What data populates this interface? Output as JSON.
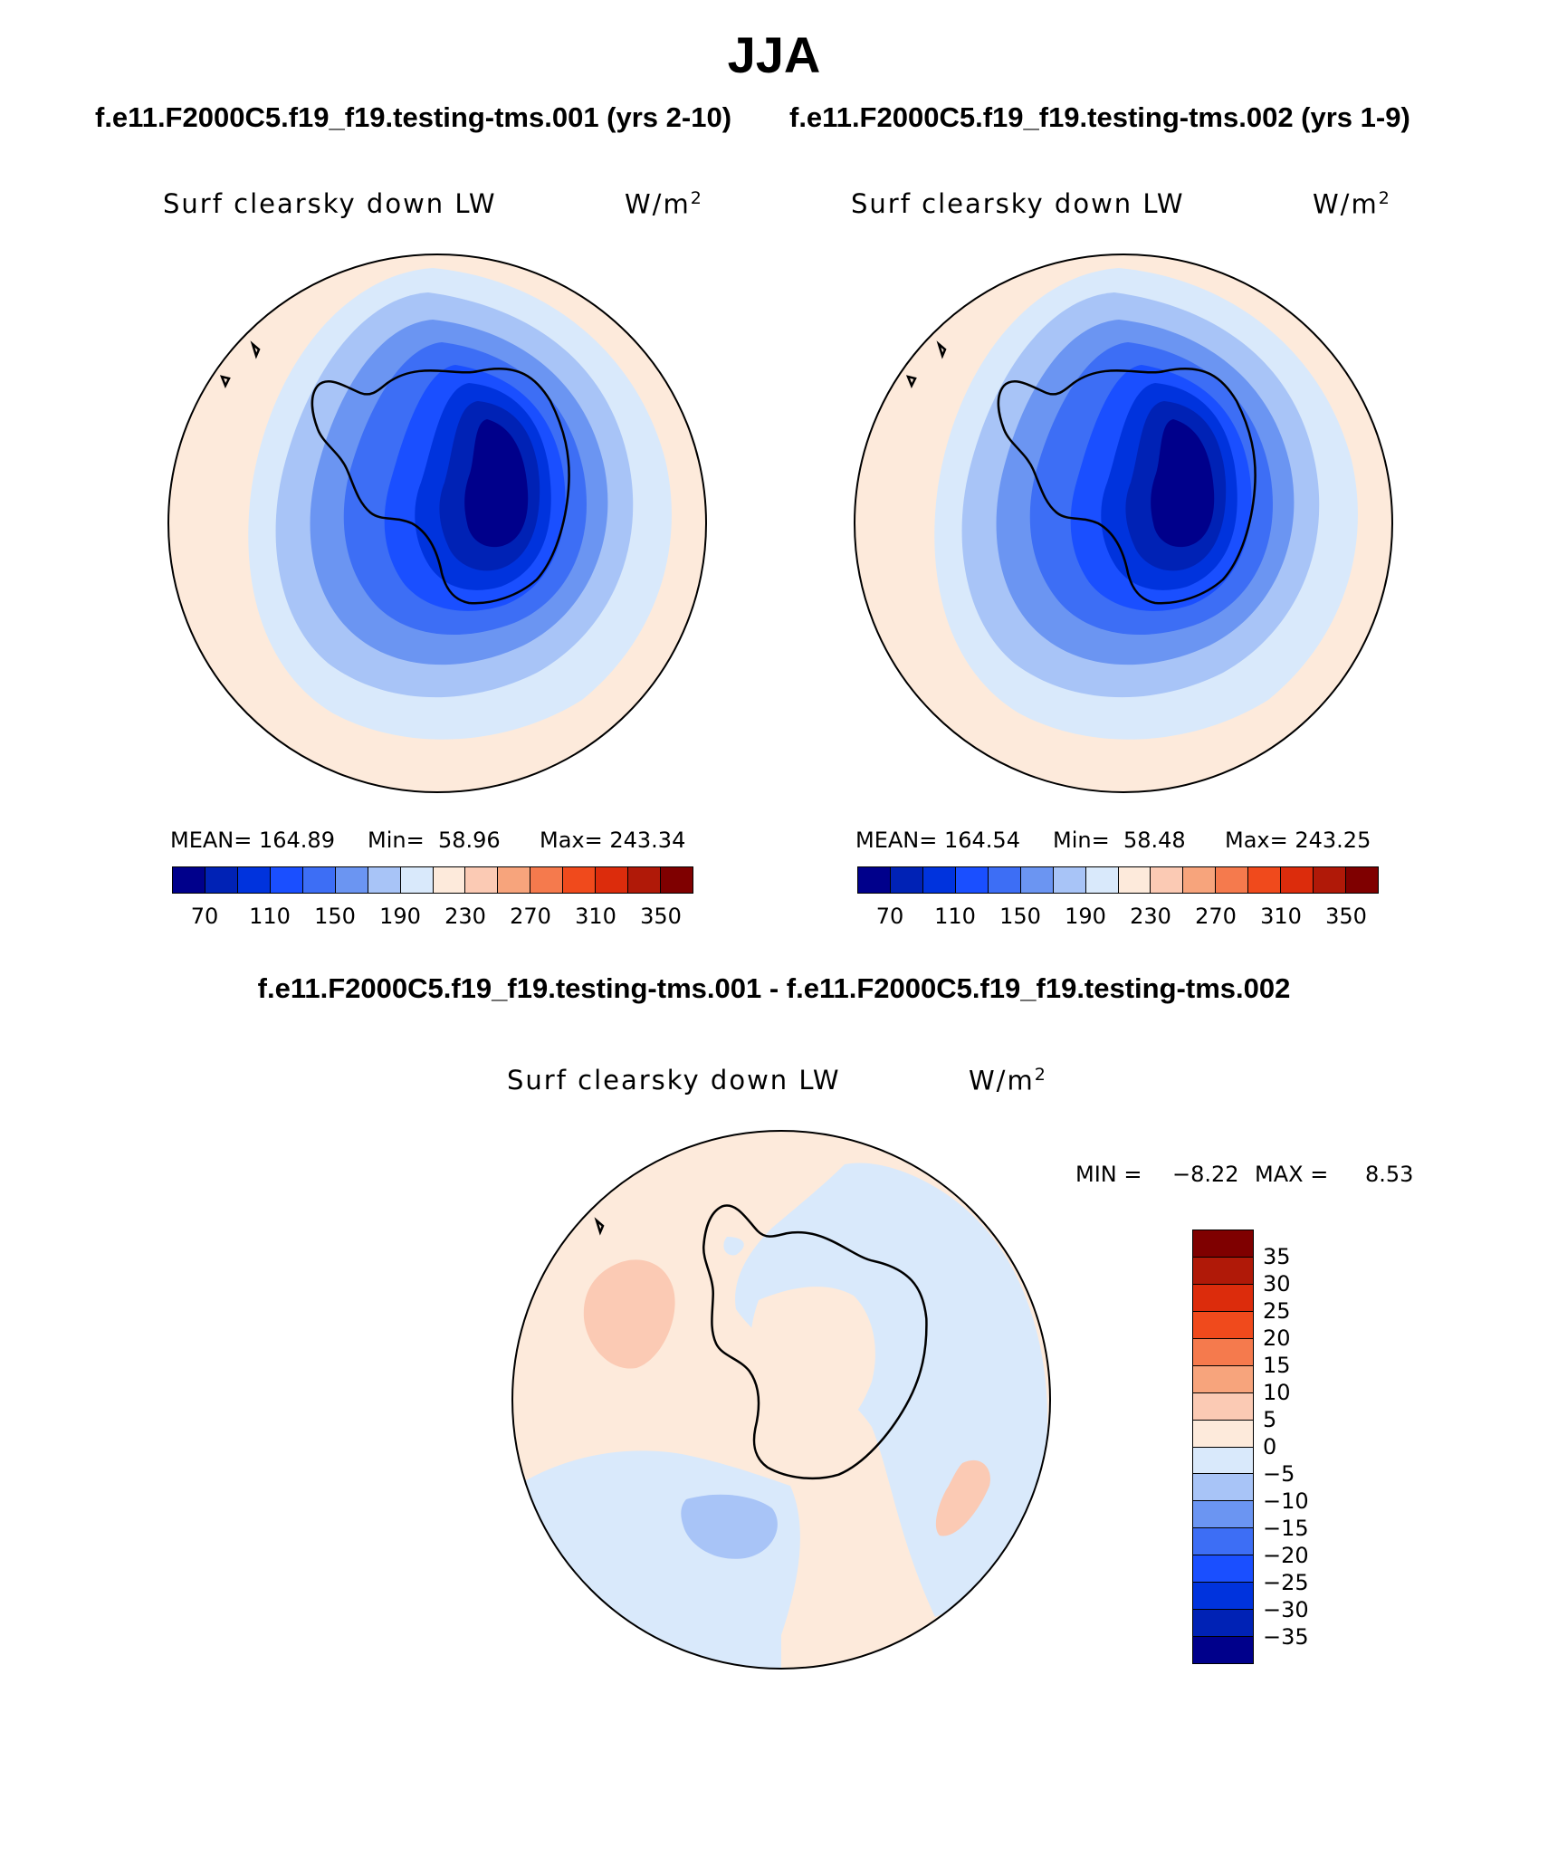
{
  "season": "JJA",
  "variable": "Surf clearsky down LW",
  "units_base": "W/m",
  "units_exp": "2",
  "panels": [
    {
      "case": "f.e11.F2000C5.f19_f19.testing-tms.001 (yrs 2-10)",
      "stats": {
        "mean": "MEAN= 164.89",
        "min": "Min=  58.96",
        "max": "Max= 243.34"
      }
    },
    {
      "case": "f.e11.F2000C5.f19_f19.testing-tms.002 (yrs 1-9)",
      "stats": {
        "mean": "MEAN= 164.54",
        "min": "Min=  58.48",
        "max": "Max= 243.25"
      }
    }
  ],
  "colorbar": {
    "colors": [
      "#00008b",
      "#0022b5",
      "#0033dd",
      "#1a4fff",
      "#3d6ef5",
      "#6b95f2",
      "#a8c4f7",
      "#d9e9fb",
      "#fdeadb",
      "#fbcab4",
      "#f7a47c",
      "#f57a4d",
      "#f04a1c",
      "#dc2c0c",
      "#b01908",
      "#7f0000"
    ],
    "labels": [
      "70",
      "110",
      "150",
      "190",
      "230",
      "270",
      "310",
      "350"
    ]
  },
  "difference": {
    "title": "f.e11.F2000C5.f19_f19.testing-tms.001 - f.e11.F2000C5.f19_f19.testing-tms.002",
    "min_label": "MIN =",
    "min_value": "−8.22",
    "max_label": "MAX =",
    "max_value": "8.53",
    "colors": [
      "#7f0000",
      "#b01908",
      "#dc2c0c",
      "#f04a1c",
      "#f57a4d",
      "#f7a47c",
      "#fbcab4",
      "#fdeadb",
      "#d9e9fb",
      "#a8c4f7",
      "#6b95f2",
      "#3d6ef5",
      "#1a4fff",
      "#0033dd",
      "#0022b5",
      "#00008b"
    ],
    "labels": [
      "35",
      "30",
      "25",
      "20",
      "15",
      "10",
      "5",
      "0",
      "−5",
      "−10",
      "−15",
      "−20",
      "−25",
      "−30",
      "−35"
    ]
  },
  "chart_data": {
    "type": "heatmap",
    "projection": "south polar stereographic",
    "season": "JJA",
    "variable": "Surf clearsky down LW",
    "units": "W/m2",
    "panels": [
      {
        "case": "f.e11.F2000C5.f19_f19.testing-tms.001 (yrs 2-10)",
        "mean": 164.89,
        "min": 58.96,
        "max": 243.34
      },
      {
        "case": "f.e11.F2000C5.f19_f19.testing-tms.002 (yrs 1-9)",
        "mean": 164.54,
        "min": 58.48,
        "max": 243.25
      }
    ],
    "field_contour_levels": [
      70,
      90,
      110,
      130,
      150,
      170,
      190,
      210,
      230,
      250,
      270,
      290,
      310,
      330,
      350
    ],
    "difference": {
      "min": -8.22,
      "max": 8.53,
      "contour_levels": [
        -35,
        -30,
        -25,
        -20,
        -15,
        -10,
        -5,
        0,
        5,
        10,
        15,
        20,
        25,
        30,
        35
      ]
    }
  }
}
